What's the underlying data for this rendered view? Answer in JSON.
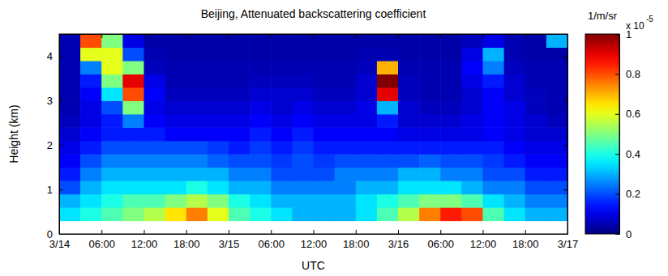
{
  "chart_data": {
    "type": "heatmap",
    "title": "Beijing, Attenuated backscattering coefficient",
    "x_label": "UTC",
    "y_label": "Height (km)",
    "xlim": [
      0,
      72
    ],
    "xticks": [
      {
        "value": 0,
        "label": "3/14"
      },
      {
        "value": 6,
        "label": "06:00"
      },
      {
        "value": 12,
        "label": "12:00"
      },
      {
        "value": 18,
        "label": "18:00"
      },
      {
        "value": 24,
        "label": "3/15"
      },
      {
        "value": 30,
        "label": "06:00"
      },
      {
        "value": 36,
        "label": "12:00"
      },
      {
        "value": 42,
        "label": "18:00"
      },
      {
        "value": 48,
        "label": "3/16"
      },
      {
        "value": 54,
        "label": "06:00"
      },
      {
        "value": 60,
        "label": "12:00"
      },
      {
        "value": 66,
        "label": "18:00"
      },
      {
        "value": 72,
        "label": "3/17"
      }
    ],
    "ylim": [
      0,
      4.5
    ],
    "yticks": [
      0,
      1,
      2,
      3,
      4
    ],
    "x_edges": [
      0,
      3,
      6,
      9,
      12,
      15,
      18,
      21,
      24,
      27,
      30,
      33,
      36,
      39,
      42,
      45,
      48,
      51,
      54,
      57,
      60,
      63,
      66,
      69,
      72
    ],
    "y_edges": [
      0.3,
      0.6,
      0.9,
      1.2,
      1.5,
      1.8,
      2.1,
      2.4,
      2.7,
      3,
      3.3,
      3.6,
      3.9,
      4.2,
      4.5
    ],
    "cells": [
      [
        0.35,
        0.4,
        0.45,
        0.5,
        0.55,
        0.65,
        0.75,
        0.6,
        0.45,
        0.4,
        0.35,
        0.3,
        0.3,
        0.3,
        0.35,
        0.45,
        0.55,
        0.75,
        0.85,
        0.8,
        0.45,
        0.35,
        0.3,
        0.3
      ],
      [
        0.3,
        0.35,
        0.4,
        0.45,
        0.45,
        0.5,
        0.55,
        0.5,
        0.4,
        0.35,
        0.3,
        0.3,
        0.3,
        0.3,
        0.35,
        0.4,
        0.45,
        0.5,
        0.5,
        0.45,
        0.35,
        0.3,
        0.25,
        0.25
      ],
      [
        0.2,
        0.3,
        0.35,
        0.35,
        0.35,
        0.35,
        0.4,
        0.35,
        0.3,
        0.3,
        0.25,
        0.25,
        0.25,
        0.25,
        0.3,
        0.3,
        0.35,
        0.35,
        0.35,
        0.3,
        0.25,
        0.25,
        0.2,
        0.2
      ],
      [
        0.15,
        0.25,
        0.3,
        0.3,
        0.3,
        0.3,
        0.3,
        0.3,
        0.25,
        0.25,
        0.2,
        0.2,
        0.2,
        0.25,
        0.25,
        0.25,
        0.3,
        0.3,
        0.25,
        0.25,
        0.2,
        0.2,
        0.15,
        0.15
      ],
      [
        0.12,
        0.2,
        0.25,
        0.25,
        0.25,
        0.25,
        0.25,
        0.22,
        0.2,
        0.2,
        0.18,
        0.2,
        0.18,
        0.2,
        0.2,
        0.2,
        0.2,
        0.22,
        0.2,
        0.2,
        0.18,
        0.15,
        0.12,
        0.12
      ],
      [
        0.1,
        0.15,
        0.2,
        0.2,
        0.2,
        0.2,
        0.2,
        0.18,
        0.15,
        0.18,
        0.15,
        0.18,
        0.15,
        0.15,
        0.15,
        0.15,
        0.15,
        0.15,
        0.15,
        0.15,
        0.15,
        0.12,
        0.1,
        0.1
      ],
      [
        0.08,
        0.12,
        0.15,
        0.15,
        0.15,
        0.12,
        0.12,
        0.12,
        0.12,
        0.15,
        0.12,
        0.15,
        0.12,
        0.12,
        0.12,
        0.12,
        0.1,
        0.1,
        0.1,
        0.1,
        0.12,
        0.1,
        0.08,
        0.08
      ],
      [
        0.06,
        0.1,
        0.15,
        0.25,
        0.12,
        0.1,
        0.1,
        0.1,
        0.1,
        0.12,
        0.1,
        0.12,
        0.1,
        0.1,
        0.1,
        0.15,
        0.08,
        0.08,
        0.08,
        0.1,
        0.12,
        0.1,
        0.08,
        0.06
      ],
      [
        0.05,
        0.1,
        0.2,
        0.5,
        0.1,
        0.08,
        0.08,
        0.08,
        0.08,
        0.1,
        0.08,
        0.1,
        0.08,
        0.08,
        0.1,
        0.3,
        0.08,
        0.06,
        0.06,
        0.08,
        0.12,
        0.1,
        0.06,
        0.05
      ],
      [
        0.05,
        0.12,
        0.35,
        0.8,
        0.12,
        0.06,
        0.06,
        0.06,
        0.06,
        0.08,
        0.08,
        0.08,
        0.06,
        0.06,
        0.08,
        0.9,
        0.06,
        0.05,
        0.05,
        0.08,
        0.12,
        0.08,
        0.06,
        0.05
      ],
      [
        0.05,
        0.15,
        0.5,
        0.9,
        0.1,
        0.05,
        0.05,
        0.05,
        0.05,
        0.06,
        0.06,
        0.06,
        0.05,
        0.05,
        0.08,
        1.0,
        0.06,
        0.05,
        0.05,
        0.1,
        0.15,
        0.08,
        0.05,
        0.05
      ],
      [
        0.05,
        0.25,
        0.6,
        0.5,
        0.06,
        0.05,
        0.05,
        0.05,
        0.05,
        0.05,
        0.05,
        0.05,
        0.05,
        0.05,
        0.06,
        0.7,
        0.05,
        0.05,
        0.05,
        0.12,
        0.25,
        0.06,
        0.05,
        0.05
      ],
      [
        0.05,
        0.6,
        0.6,
        0.2,
        0.05,
        0.04,
        0.04,
        0.04,
        0.04,
        0.04,
        0.04,
        0.04,
        0.04,
        0.04,
        0.05,
        0.05,
        0.04,
        0.04,
        0.04,
        0.1,
        0.3,
        0.05,
        0.04,
        0.04
      ],
      [
        0.05,
        0.8,
        0.5,
        0.1,
        0.04,
        0.04,
        0.04,
        0.04,
        0.04,
        0.04,
        0.04,
        0.04,
        0.04,
        0.04,
        0.04,
        0.04,
        0.04,
        0.04,
        0.04,
        0.06,
        0.1,
        0.05,
        0.04,
        0.3
      ]
    ],
    "colorbar": {
      "range": [
        0,
        1
      ],
      "ticks": [
        0,
        0.2,
        0.4,
        0.6,
        0.8,
        1
      ],
      "label": "1/m/sr",
      "multiplier": "x 10",
      "exponent": "-5"
    }
  }
}
